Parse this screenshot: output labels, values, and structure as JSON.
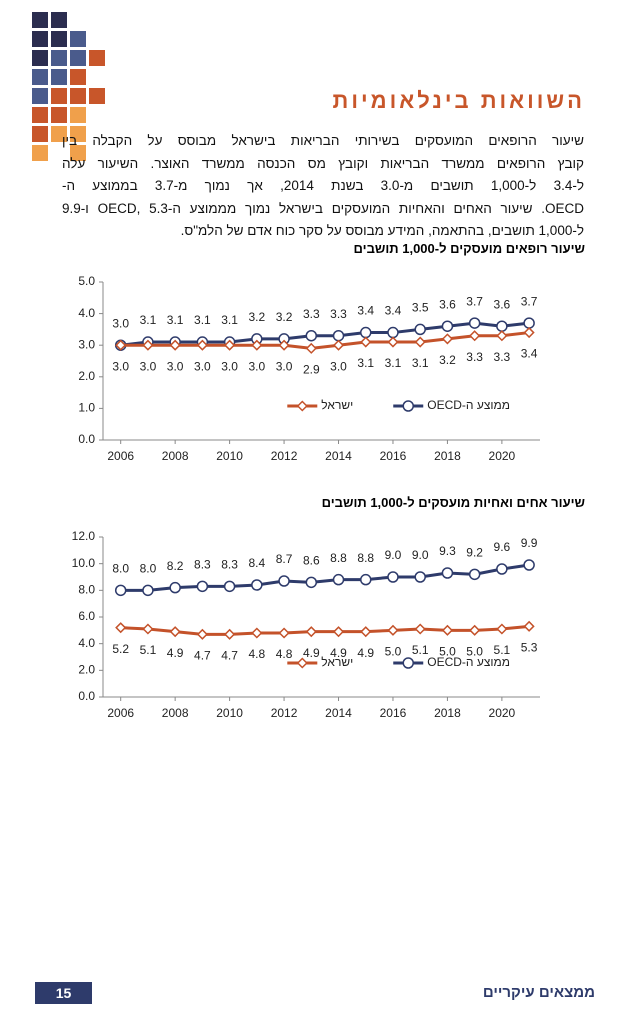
{
  "header": {
    "title": "השוואות בינלאומיות"
  },
  "paragraph": [
    "שיעור הרופאים המועסקים בשירותי הבריאות בישראל מבוסס על הקבלה בין",
    "קובץ הרופאים ממשרד הבריאות וקובץ מס הכנסה ממשרד האוצר. השיעור עלה",
    "ל-3.4 ל-1,000 תושבים מ-3.0 בשנת 2014, אך נמוך מ-3.7 בממוצע ה-",
    "OECD. שיעור האחים והאחיות המועסקים בישראל נמוך מממוצע ה-OECD, 5.3 ו-9.9",
    "ל-1,000 תושבים, בהתאמה, המידע מבוסס על סקר כוח אדם של הלמ\"ס."
  ],
  "chart_data": [
    {
      "type": "line",
      "title": "שיעור רופאים מועסקים ל-1,000 תושבים",
      "x": [
        2006,
        2007,
        2008,
        2009,
        2010,
        2011,
        2012,
        2013,
        2014,
        2015,
        2016,
        2017,
        2018,
        2019,
        2020,
        2021
      ],
      "xlim": [
        2005.35,
        2021.4
      ],
      "xticks": [
        2006,
        2008,
        2010,
        2012,
        2014,
        2016,
        2018,
        2020
      ],
      "ylim": [
        0,
        5
      ],
      "yticks": [
        {
          "value": 0,
          "label": "0.0"
        },
        {
          "value": 1,
          "label": "1.0"
        },
        {
          "value": 2,
          "label": "2.0"
        },
        {
          "value": 3,
          "label": "3.0"
        },
        {
          "value": 4,
          "label": "4.0"
        },
        {
          "value": 5,
          "label": "5.0"
        }
      ],
      "grid": false,
      "legend": "bottom",
      "series": [
        {
          "name": "ממוצע ה-OECD",
          "color": "#2e3b6b",
          "marker": "circle",
          "label_side": "above",
          "values": [
            3.0,
            3.1,
            3.1,
            3.1,
            3.1,
            3.2,
            3.2,
            3.3,
            3.3,
            3.4,
            3.4,
            3.5,
            3.6,
            3.7,
            3.6,
            3.7
          ],
          "value_labels": [
            "3.0",
            "3.1",
            "3.1",
            "3.1",
            "3.1",
            "3.2",
            "3.2",
            "3.3",
            "3.3",
            "3.4",
            "3.4",
            "3.5",
            "3.6",
            "3.7",
            "3.6",
            "3.7"
          ]
        },
        {
          "name": "ישראל",
          "color": "#c4522a",
          "marker": "diamond",
          "label_side": "below",
          "values": [
            3.0,
            3.0,
            3.0,
            3.0,
            3.0,
            3.0,
            3.0,
            2.9,
            3.0,
            3.1,
            3.1,
            3.1,
            3.2,
            3.3,
            3.3,
            3.4
          ],
          "value_labels": [
            "3.0",
            "3.0",
            "3.0",
            "3.0",
            "3.0",
            "3.0",
            "3.0",
            "2.9",
            "3.0",
            "3.1",
            "3.1",
            "3.1",
            "3.2",
            "3.3",
            "3.3",
            "3.4"
          ]
        }
      ]
    },
    {
      "type": "line",
      "title": "שיעור אחים ואחיות מועסקים ל-1,000 תושבים",
      "x": [
        2006,
        2007,
        2008,
        2009,
        2010,
        2011,
        2012,
        2013,
        2014,
        2015,
        2016,
        2017,
        2018,
        2019,
        2020,
        2021
      ],
      "xlim": [
        2005.35,
        2021.4
      ],
      "xticks": [
        2006,
        2008,
        2010,
        2012,
        2014,
        2016,
        2018,
        2020
      ],
      "ylim": [
        0,
        12
      ],
      "yticks": [
        {
          "value": 0,
          "label": "0.0"
        },
        {
          "value": 2,
          "label": "2.0"
        },
        {
          "value": 4,
          "label": "4.0"
        },
        {
          "value": 6,
          "label": "6.0"
        },
        {
          "value": 8,
          "label": "8.0"
        },
        {
          "value": 10,
          "label": "10.0"
        },
        {
          "value": 12,
          "label": "12.0"
        }
      ],
      "grid": false,
      "legend": "bottom",
      "series": [
        {
          "name": "ממוצע ה-OECD",
          "color": "#2e3b6b",
          "marker": "circle",
          "label_side": "above",
          "values": [
            8.0,
            8.0,
            8.2,
            8.3,
            8.3,
            8.4,
            8.7,
            8.6,
            8.8,
            8.8,
            9.0,
            9.0,
            9.3,
            9.2,
            9.6,
            9.9
          ],
          "value_labels": [
            "8.0",
            "8.0",
            "8.2",
            "8.3",
            "8.3",
            "8.4",
            "8.7",
            "8.6",
            "8.8",
            "8.8",
            "9.0",
            "9.0",
            "9.3",
            "9.2",
            "9.6",
            "9.9"
          ]
        },
        {
          "name": "ישראל",
          "color": "#c4522a",
          "marker": "diamond",
          "label_side": "below",
          "values": [
            5.2,
            5.1,
            4.9,
            4.7,
            4.7,
            4.8,
            4.8,
            4.9,
            4.9,
            4.9,
            5.0,
            5.1,
            5.0,
            5.0,
            5.1,
            5.3
          ],
          "value_labels": [
            "5.2",
            "5.1",
            "4.9",
            "4.7",
            "4.7",
            "4.8",
            "4.8",
            "4.9",
            "4.9",
            "4.9",
            "5.0",
            "5.1",
            "5.0",
            "5.0",
            "5.1",
            "5.3"
          ]
        }
      ]
    }
  ],
  "footer": {
    "page_number": 15,
    "section": "ממצאים עיקריים"
  }
}
